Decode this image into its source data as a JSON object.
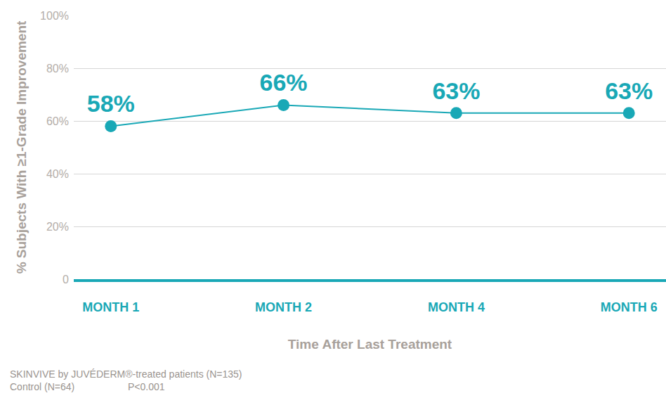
{
  "chart_data": {
    "type": "line",
    "categories": [
      "MONTH 1",
      "MONTH 2",
      "MONTH 4",
      "MONTH 6"
    ],
    "values": [
      58,
      66,
      63,
      63
    ],
    "value_labels": [
      "58%",
      "66%",
      "63%",
      "63%"
    ],
    "data_labels": true,
    "color": "#19a8b6",
    "marker": "circle",
    "line_style": "solid",
    "xlabel": "Time After Last Treatment",
    "ylabel": "% Subjects With ≥1-Grade Improvement",
    "ylim": [
      0,
      100
    ],
    "yticks": [
      0,
      {
        "value": 20,
        "label": "20%"
      },
      {
        "value": 40,
        "label": "40%"
      },
      {
        "value": 60,
        "label": "60%"
      },
      {
        "value": 80,
        "label": "80%"
      },
      {
        "value": 100,
        "label": "100%"
      }
    ],
    "grid": true,
    "notes": [
      "SKINVIVE by JUVÉDERM®-treated patients (N=135)",
      "Control (N=64)",
      "P<0.001"
    ]
  }
}
